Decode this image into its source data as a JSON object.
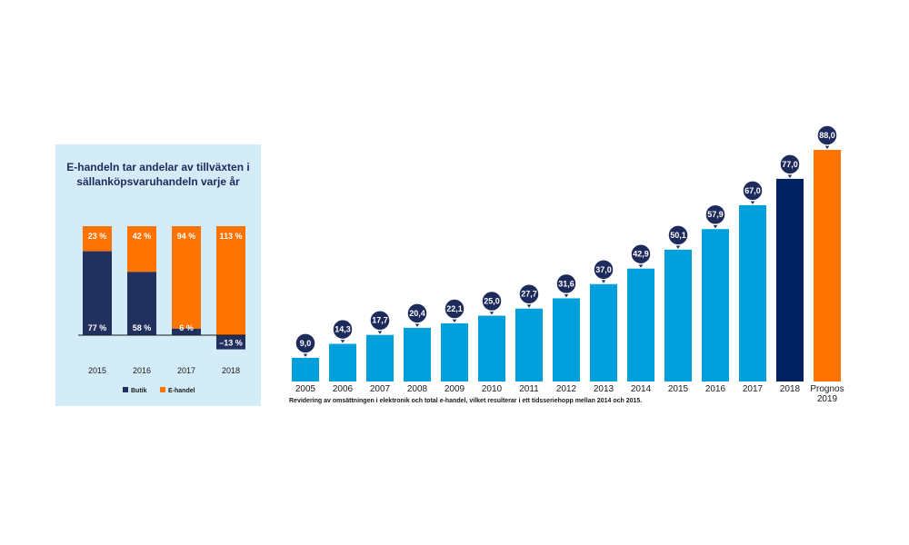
{
  "chart_data": [
    {
      "type": "bar",
      "stacked": true,
      "title": "E-handeln tar andelar av tillväxten i sällanköpsvaruhandeln varje år",
      "title_lines": [
        "E-handeln tar andelar av tillväxten i",
        "sällanköpsvaruhandeln varje år"
      ],
      "categories": [
        "2015",
        "2016",
        "2017",
        "2018"
      ],
      "series": [
        {
          "name": "Butik",
          "values": [
            77,
            58,
            6,
            -13
          ],
          "labels": [
            "77 %",
            "58 %",
            "6 %",
            "–13 %"
          ],
          "color": "#22305f"
        },
        {
          "name": "E-handel",
          "values": [
            23,
            42,
            94,
            113
          ],
          "labels": [
            "23 %",
            "42 %",
            "94 %",
            "113 %"
          ],
          "color": "#ff7300"
        }
      ],
      "ylim": [
        -25,
        125
      ],
      "legend": "bottom",
      "grid": false
    },
    {
      "type": "bar",
      "categories": [
        "2005",
        "2006",
        "2007",
        "2008",
        "2009",
        "2010",
        "2011",
        "2012",
        "2013",
        "2014",
        "2015",
        "2016",
        "2017",
        "2018",
        "Prognos 2019"
      ],
      "category_lines": [
        [
          "2005"
        ],
        [
          "2006"
        ],
        [
          "2007"
        ],
        [
          "2008"
        ],
        [
          "2009"
        ],
        [
          "2010"
        ],
        [
          "2011"
        ],
        [
          "2012"
        ],
        [
          "2013"
        ],
        [
          "2014"
        ],
        [
          "2015"
        ],
        [
          "2016"
        ],
        [
          "2017"
        ],
        [
          "2018"
        ],
        [
          "Prognos",
          "2019"
        ]
      ],
      "values": [
        9.0,
        14.3,
        17.7,
        20.4,
        22.1,
        25.0,
        27.7,
        31.6,
        37.0,
        42.9,
        50.1,
        57.9,
        67.0,
        77.0,
        88.0
      ],
      "value_labels": [
        "9,0",
        "14,3",
        "17,7",
        "20,4",
        "22,1",
        "25,0",
        "27,7",
        "31,6",
        "37,0",
        "42,9",
        "50,1",
        "57,9",
        "67,0",
        "77,0",
        "88,0"
      ],
      "colors": {
        "default": "#00a0dc",
        "highlight": "#002060",
        "forecast": "#ff7300",
        "bubble": "#1d2a5c"
      },
      "ylim": [
        0,
        88
      ],
      "grid": false,
      "legend": "none",
      "footnote": "Revidering av omsättningen i elektronik och total e-handel, vilket resulterar i ett tidsseriehopp mellan 2014 och 2015."
    }
  ]
}
